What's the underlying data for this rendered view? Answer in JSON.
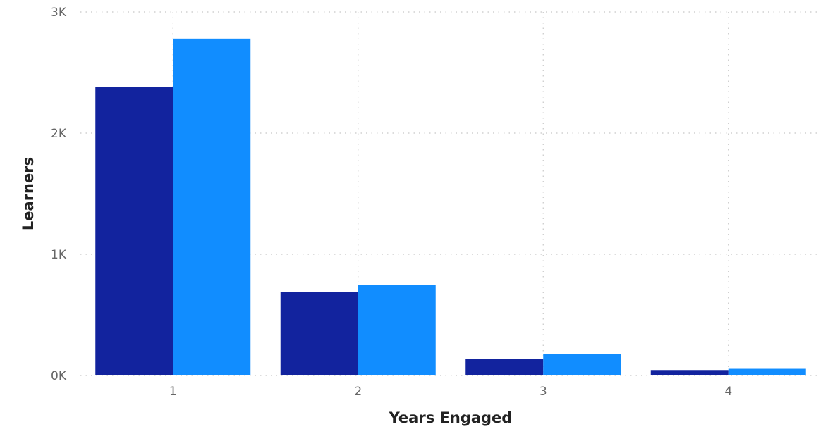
{
  "chart_data": {
    "type": "bar",
    "categories": [
      "1",
      "2",
      "3",
      "4"
    ],
    "series": [
      {
        "values": [
          2380,
          690,
          135,
          45
        ],
        "color": "#12239E"
      },
      {
        "values": [
          2780,
          750,
          175,
          55
        ],
        "color": "#118DFF"
      }
    ],
    "xlabel": "Years Engaged",
    "ylabel": "Learners",
    "ylim": [
      0,
      3000
    ],
    "yticks": [
      0,
      1000,
      2000,
      3000
    ],
    "ytick_labels": [
      "0K",
      "1K",
      "2K",
      "3K"
    ],
    "grid": true,
    "legend": "none"
  }
}
